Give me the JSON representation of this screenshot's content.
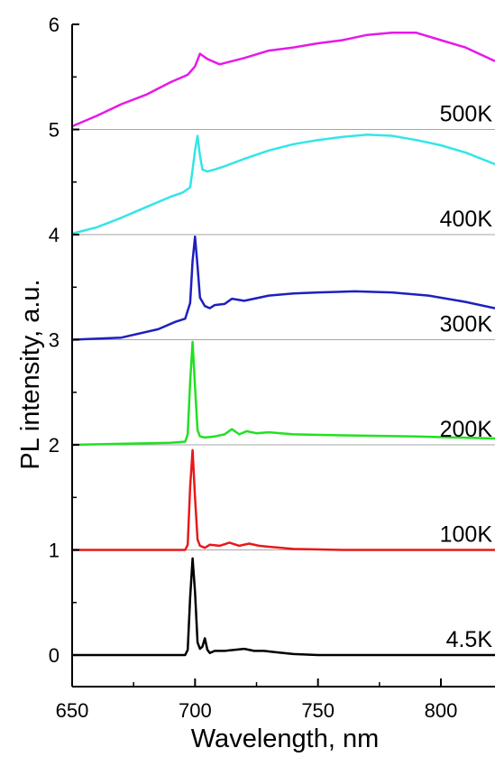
{
  "chart_data": {
    "type": "line",
    "xlabel": "Wavelength, nm",
    "ylabel": "PL intensity, a.u.",
    "xlim": [
      650,
      822
    ],
    "ylim": [
      -0.3,
      6
    ],
    "xticks": [
      650,
      700,
      750,
      800
    ],
    "yticks": [
      0,
      1,
      2,
      3,
      4,
      5,
      6
    ],
    "grid": "horizontal lines at y = 1, 2, 3, 4, 5",
    "series": [
      {
        "name": "4.5K",
        "color": "#000000",
        "x": [
          650,
          690,
          696,
          697,
          698,
          699,
          700,
          701,
          702,
          703,
          704,
          705,
          706,
          708,
          712,
          716,
          720,
          724,
          728,
          732,
          736,
          740,
          750,
          780,
          822
        ],
        "y": [
          0.0,
          0.0,
          0.0,
          0.05,
          0.55,
          0.92,
          0.6,
          0.12,
          0.06,
          0.08,
          0.16,
          0.05,
          0.02,
          0.04,
          0.04,
          0.05,
          0.06,
          0.04,
          0.04,
          0.03,
          0.02,
          0.01,
          0.0,
          0.0,
          0.0
        ]
      },
      {
        "name": "100K",
        "color": "#e8191b",
        "x": [
          650,
          690,
          696,
          697,
          698,
          699,
          700,
          701,
          702,
          704,
          706,
          710,
          714,
          718,
          722,
          726,
          730,
          740,
          760,
          822
        ],
        "y": [
          1.0,
          1.0,
          1.0,
          1.05,
          1.6,
          1.95,
          1.5,
          1.1,
          1.04,
          1.02,
          1.05,
          1.04,
          1.07,
          1.04,
          1.06,
          1.04,
          1.03,
          1.01,
          1.0,
          1.0
        ]
      },
      {
        "name": "200K",
        "color": "#22e022",
        "x": [
          650,
          690,
          696,
          697,
          698,
          699,
          700,
          701,
          702,
          704,
          708,
          712,
          715,
          718,
          721,
          725,
          730,
          740,
          760,
          790,
          822
        ],
        "y": [
          2.0,
          2.02,
          2.03,
          2.1,
          2.6,
          2.98,
          2.55,
          2.14,
          2.08,
          2.07,
          2.08,
          2.1,
          2.15,
          2.1,
          2.13,
          2.11,
          2.12,
          2.1,
          2.09,
          2.08,
          2.06
        ]
      },
      {
        "name": "300K",
        "color": "#1f1fbf",
        "x": [
          650,
          670,
          685,
          692,
          696,
          698,
          699,
          700,
          701,
          702,
          704,
          706,
          708,
          712,
          715,
          720,
          730,
          740,
          750,
          765,
          780,
          795,
          810,
          822
        ],
        "y": [
          3.0,
          3.02,
          3.1,
          3.17,
          3.2,
          3.35,
          3.75,
          3.98,
          3.7,
          3.4,
          3.32,
          3.3,
          3.33,
          3.34,
          3.39,
          3.37,
          3.42,
          3.44,
          3.45,
          3.46,
          3.45,
          3.42,
          3.36,
          3.3
        ]
      },
      {
        "name": "400K",
        "color": "#33e5e8",
        "x": [
          650,
          660,
          670,
          680,
          690,
          695,
          698,
          699,
          700,
          701,
          702,
          703,
          705,
          708,
          712,
          720,
          730,
          740,
          750,
          760,
          770,
          780,
          790,
          800,
          810,
          822
        ],
        "y": [
          4.01,
          4.07,
          4.16,
          4.26,
          4.36,
          4.4,
          4.45,
          4.62,
          4.8,
          4.94,
          4.75,
          4.62,
          4.6,
          4.62,
          4.65,
          4.72,
          4.8,
          4.86,
          4.9,
          4.93,
          4.95,
          4.94,
          4.9,
          4.85,
          4.78,
          4.67
        ]
      },
      {
        "name": "500K",
        "color": "#e619e8",
        "x": [
          650,
          660,
          670,
          680,
          690,
          697,
          700,
          702,
          705,
          710,
          720,
          730,
          740,
          750,
          760,
          770,
          780,
          790,
          800,
          810,
          822
        ],
        "y": [
          5.03,
          5.13,
          5.24,
          5.33,
          5.45,
          5.52,
          5.6,
          5.72,
          5.67,
          5.62,
          5.68,
          5.75,
          5.78,
          5.82,
          5.85,
          5.9,
          5.92,
          5.92,
          5.85,
          5.78,
          5.65
        ]
      }
    ]
  }
}
